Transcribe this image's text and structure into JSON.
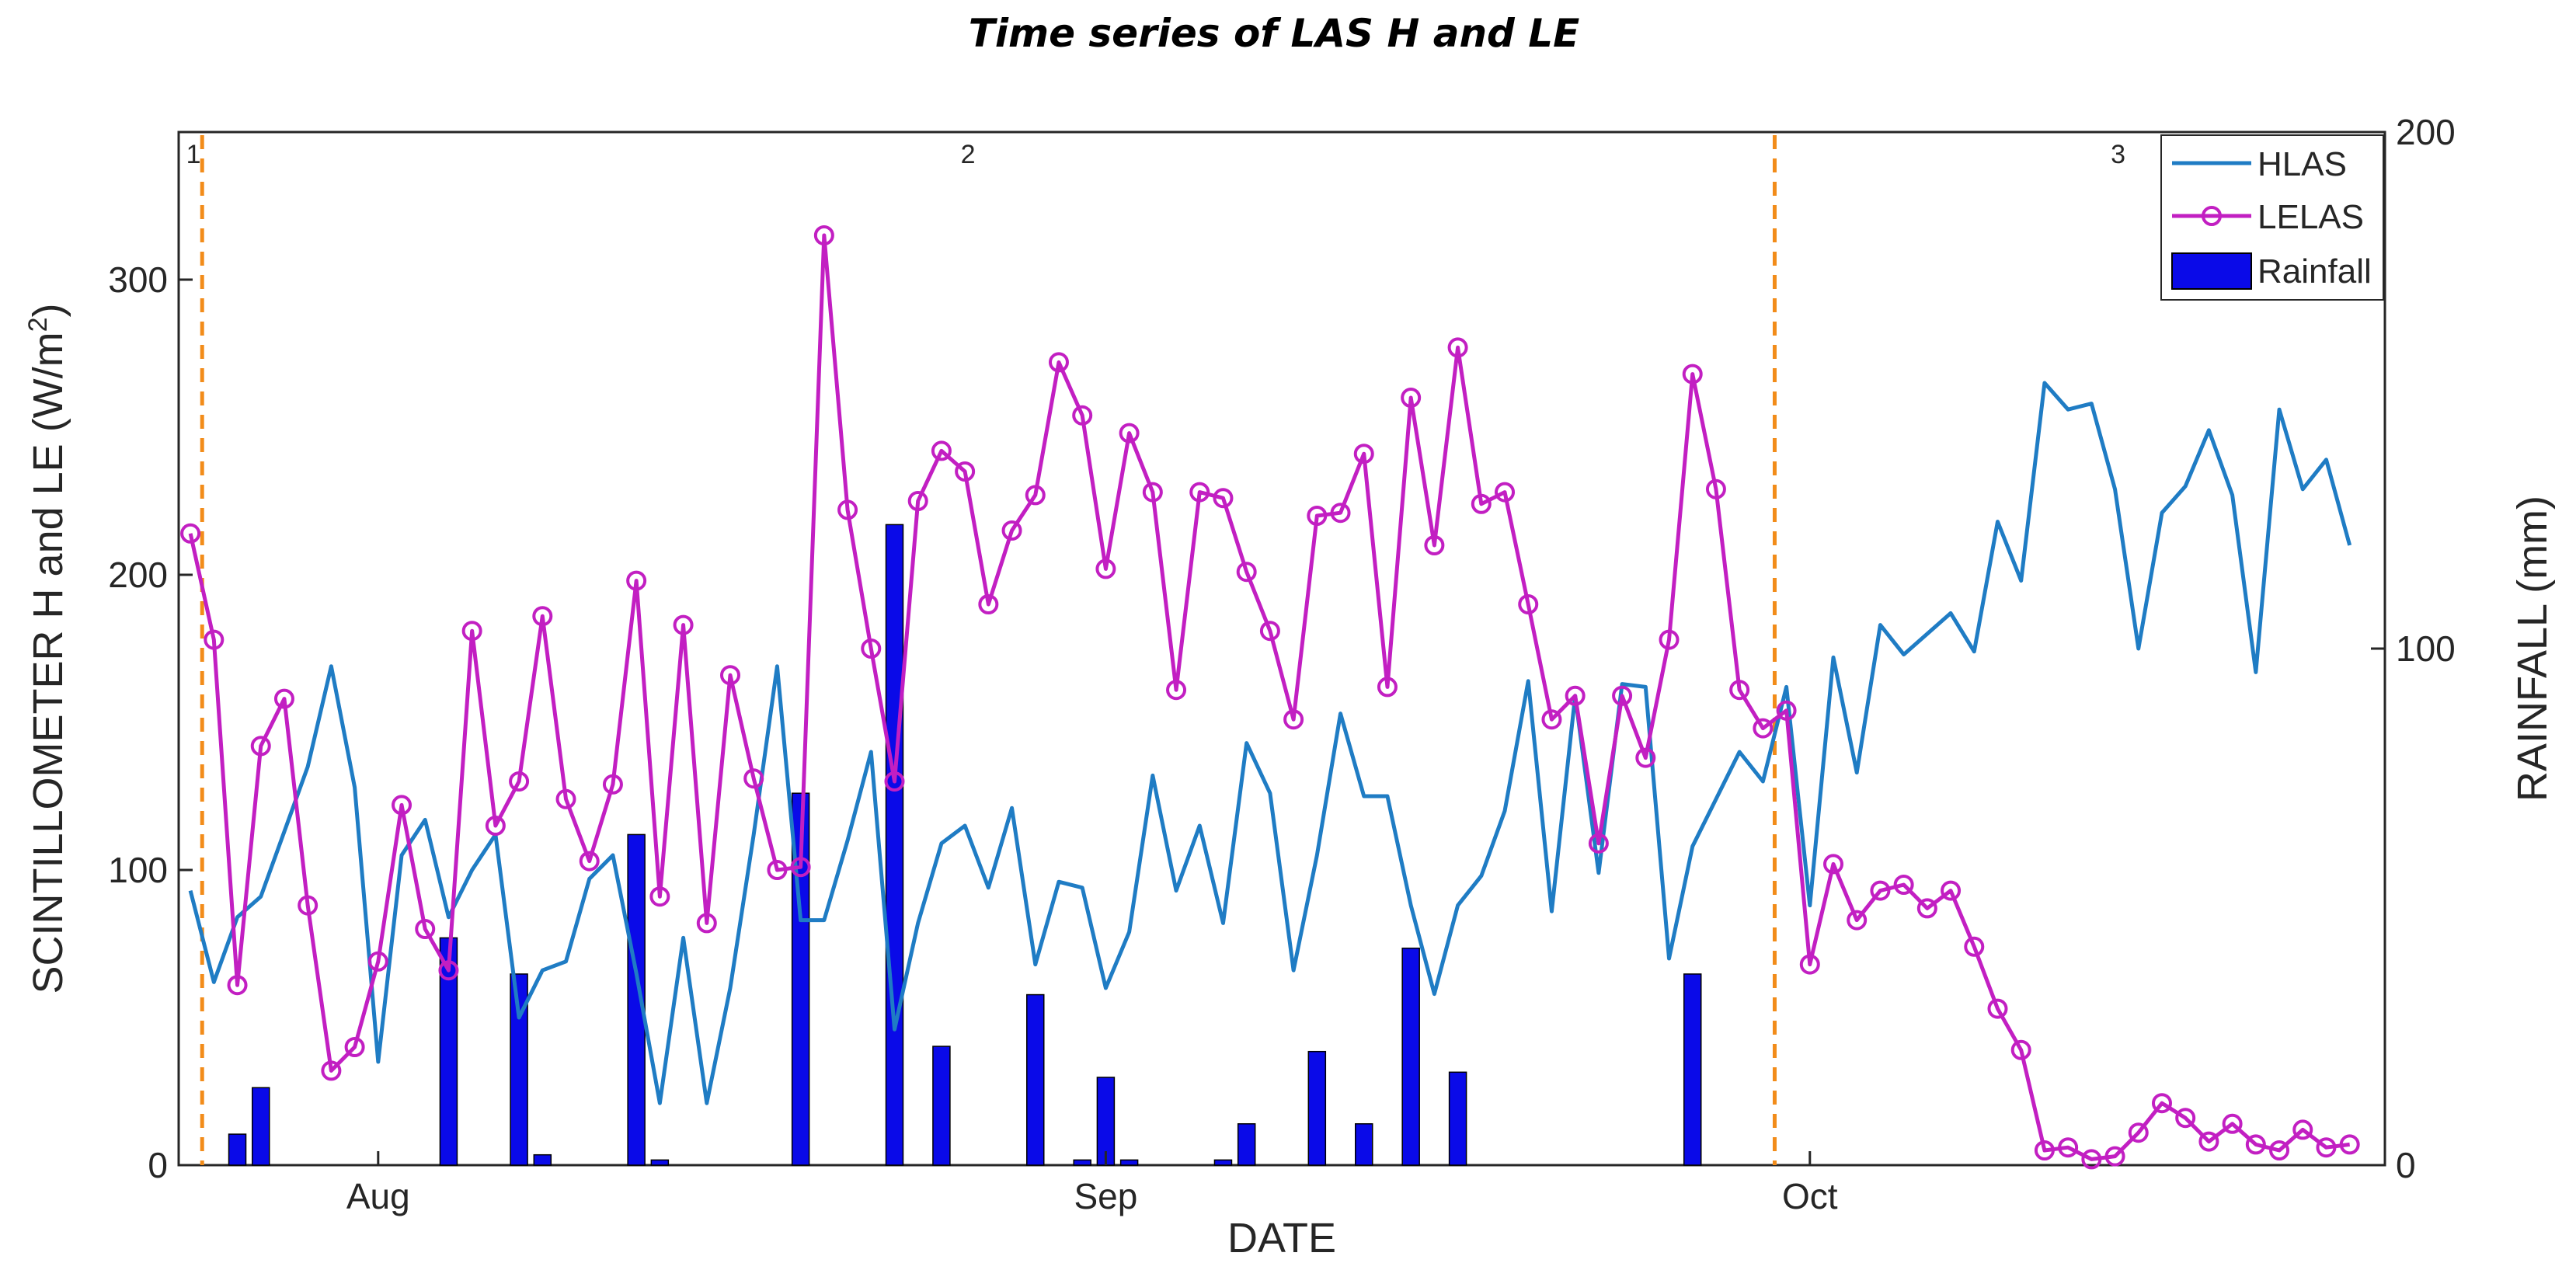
{
  "chart_data": {
    "type": "line",
    "title": "Time series of LAS H and LE",
    "xlabel": "DATE",
    "ylabel_left": "SCINTILLOMETER H and LE (W/m²)",
    "ylabel_left_base": "SCINTILLOMETER H and LE (W/m",
    "ylabel_left_sup": "2",
    "ylabel_left_end": ")",
    "ylabel_right": "RAINFALL (mm)",
    "xlim": [
      -0.5,
      93.5
    ],
    "ylim_left": [
      0,
      350
    ],
    "ylim_right": [
      0,
      200
    ],
    "x_ticks": [
      {
        "x": 8,
        "label": "Aug"
      },
      {
        "x": 39,
        "label": "Sep"
      },
      {
        "x": 69,
        "label": "Oct"
      }
    ],
    "y_left_ticks": [
      0,
      100,
      200,
      300
    ],
    "y_right_ticks": [
      0,
      100,
      200
    ],
    "phase_lines": [
      0.5,
      67.5
    ],
    "phase_labels": [
      {
        "x": 0,
        "label": "1"
      },
      {
        "x": 33,
        "label": "2"
      },
      {
        "x": 82,
        "label": "3"
      }
    ],
    "legend": {
      "position": "top-right",
      "entries": [
        "HLAS",
        "LELAS",
        "Rainfall"
      ]
    },
    "colors": {
      "HLAS": "#1f7cc4",
      "LELAS": "#c21fc2",
      "Rainfall": "#0a0ae8",
      "phase": "#f28c1a"
    },
    "series": [
      {
        "name": "HLAS",
        "type": "line",
        "values": [
          93,
          62,
          84,
          91,
          113,
          135,
          169,
          128,
          35,
          105,
          117,
          84,
          100,
          112,
          50,
          66,
          69,
          97,
          105,
          65,
          21,
          77,
          21,
          60,
          112,
          169,
          83,
          83,
          110,
          140,
          46,
          82,
          109,
          115,
          94,
          121,
          68,
          96,
          94,
          60,
          79,
          132,
          93,
          115,
          82,
          143,
          126,
          66,
          105,
          153,
          125,
          125,
          88,
          58,
          88,
          98,
          120,
          164,
          86,
          159,
          99,
          163,
          162,
          70,
          108,
          124,
          140,
          130,
          162,
          88,
          172,
          133,
          183,
          173,
          180,
          187,
          174,
          218,
          198,
          265,
          256,
          258,
          229,
          175,
          221,
          230,
          249,
          227,
          167,
          256,
          229,
          239,
          210
        ]
      },
      {
        "name": "LELAS",
        "type": "line",
        "marker": "circle",
        "values": [
          214,
          178,
          61,
          142,
          158,
          88,
          32,
          40,
          69,
          122,
          80,
          66,
          181,
          115,
          130,
          186,
          124,
          103,
          129,
          198,
          91,
          183,
          82,
          166,
          131,
          100,
          101,
          315,
          222,
          175,
          130,
          225,
          242,
          235,
          190,
          215,
          227,
          272,
          254,
          202,
          248,
          228,
          161,
          228,
          226,
          201,
          181,
          151,
          220,
          221,
          241,
          162,
          260,
          210,
          277,
          224,
          228,
          190,
          151,
          159,
          109,
          159,
          138,
          178,
          268,
          229,
          161,
          148,
          154,
          68,
          102,
          83,
          93,
          95,
          87,
          93,
          74,
          53,
          39,
          5,
          6,
          2,
          3,
          11,
          21,
          16,
          8,
          14,
          7,
          5,
          12,
          6,
          7
        ]
      },
      {
        "name": "Rainfall",
        "type": "bar",
        "axis": "right",
        "points": [
          [
            2,
            6
          ],
          [
            3,
            15
          ],
          [
            11,
            44
          ],
          [
            14,
            37
          ],
          [
            15,
            2
          ],
          [
            19,
            64
          ],
          [
            20,
            1
          ],
          [
            26,
            72
          ],
          [
            30,
            124
          ],
          [
            32,
            23
          ],
          [
            36,
            33
          ],
          [
            38,
            1
          ],
          [
            39,
            17
          ],
          [
            40,
            1
          ],
          [
            44,
            1
          ],
          [
            45,
            8
          ],
          [
            48,
            22
          ],
          [
            50,
            8
          ],
          [
            52,
            42
          ],
          [
            54,
            18
          ],
          [
            64,
            37
          ]
        ]
      }
    ]
  }
}
